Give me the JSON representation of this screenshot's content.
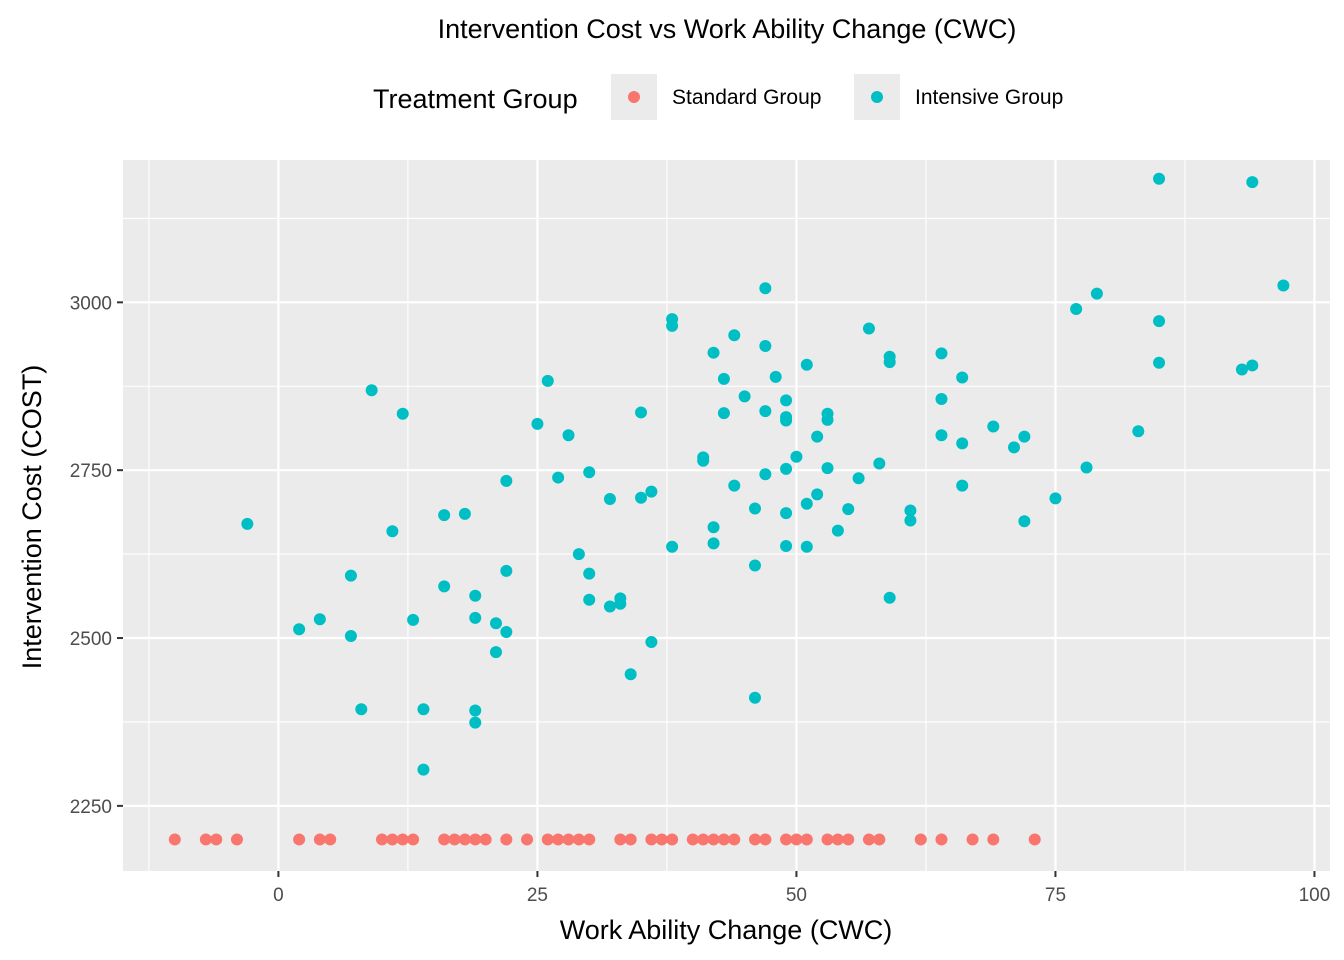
{
  "chart_data": {
    "type": "scatter",
    "title": "Intervention Cost vs Work Ability Change (CWC)",
    "xlabel": "Work Ability Change (CWC)",
    "ylabel": "Intervention Cost (COST)",
    "xlim": [
      -15,
      101.5
    ],
    "ylim": [
      2153,
      3212
    ],
    "xticks": [
      0,
      25,
      50,
      75,
      100
    ],
    "yticks": [
      2250,
      2500,
      2750,
      3000
    ],
    "grid": true,
    "legend": {
      "title": "Treatment Group",
      "position": "top",
      "entries": [
        "Standard Group",
        "Intensive Group"
      ]
    },
    "series": [
      {
        "name": "Standard Group",
        "color": "#F8766D",
        "points": [
          [
            -10,
            2200
          ],
          [
            -7,
            2200
          ],
          [
            -6,
            2200
          ],
          [
            -4,
            2200
          ],
          [
            2,
            2200
          ],
          [
            4,
            2200
          ],
          [
            5,
            2200
          ],
          [
            10,
            2200
          ],
          [
            11,
            2200
          ],
          [
            12,
            2200
          ],
          [
            13,
            2200
          ],
          [
            16,
            2200
          ],
          [
            17,
            2200
          ],
          [
            18,
            2200
          ],
          [
            19,
            2200
          ],
          [
            20,
            2200
          ],
          [
            22,
            2200
          ],
          [
            24,
            2200
          ],
          [
            26,
            2200
          ],
          [
            27,
            2200
          ],
          [
            28,
            2200
          ],
          [
            29,
            2200
          ],
          [
            30,
            2200
          ],
          [
            33,
            2200
          ],
          [
            34,
            2200
          ],
          [
            36,
            2200
          ],
          [
            37,
            2200
          ],
          [
            38,
            2200
          ],
          [
            40,
            2200
          ],
          [
            41,
            2200
          ],
          [
            42,
            2200
          ],
          [
            43,
            2200
          ],
          [
            44,
            2200
          ],
          [
            46,
            2200
          ],
          [
            47,
            2200
          ],
          [
            49,
            2200
          ],
          [
            50,
            2200
          ],
          [
            51,
            2200
          ],
          [
            53,
            2200
          ],
          [
            54,
            2200
          ],
          [
            55,
            2200
          ],
          [
            57,
            2200
          ],
          [
            58,
            2200
          ],
          [
            62,
            2200
          ],
          [
            64,
            2200
          ],
          [
            67,
            2200
          ],
          [
            69,
            2200
          ],
          [
            73,
            2200
          ]
        ]
      },
      {
        "name": "Intensive Group",
        "color": "#00BFC4",
        "points": [
          [
            -3,
            2670
          ],
          [
            2,
            2513
          ],
          [
            4,
            2528
          ],
          [
            7,
            2593
          ],
          [
            7,
            2503
          ],
          [
            8,
            2394
          ],
          [
            9,
            2869
          ],
          [
            11,
            2659
          ],
          [
            12,
            2834
          ],
          [
            13,
            2527
          ],
          [
            14,
            2394
          ],
          [
            14,
            2304
          ],
          [
            16,
            2683
          ],
          [
            16,
            2577
          ],
          [
            18,
            2685
          ],
          [
            19,
            2563
          ],
          [
            19,
            2530
          ],
          [
            19,
            2392
          ],
          [
            19,
            2374
          ],
          [
            21,
            2522
          ],
          [
            21,
            2479
          ],
          [
            22,
            2734
          ],
          [
            22,
            2600
          ],
          [
            22,
            2509
          ],
          [
            25,
            2819
          ],
          [
            26,
            2883
          ],
          [
            27,
            2739
          ],
          [
            28,
            2802
          ],
          [
            29,
            2625
          ],
          [
            30,
            2747
          ],
          [
            30,
            2596
          ],
          [
            30,
            2557
          ],
          [
            32,
            2707
          ],
          [
            32,
            2547
          ],
          [
            33,
            2559
          ],
          [
            33,
            2551
          ],
          [
            34,
            2446
          ],
          [
            35,
            2836
          ],
          [
            35,
            2709
          ],
          [
            36,
            2718
          ],
          [
            36,
            2494
          ],
          [
            38,
            2975
          ],
          [
            38,
            2965
          ],
          [
            38,
            2636
          ],
          [
            41,
            2769
          ],
          [
            41,
            2764
          ],
          [
            42,
            2925
          ],
          [
            42,
            2665
          ],
          [
            42,
            2641
          ],
          [
            43,
            2886
          ],
          [
            43,
            2835
          ],
          [
            44,
            2951
          ],
          [
            44,
            2727
          ],
          [
            45,
            2860
          ],
          [
            46,
            2693
          ],
          [
            46,
            2608
          ],
          [
            46,
            2411
          ],
          [
            47,
            3021
          ],
          [
            47,
            2935
          ],
          [
            47,
            2838
          ],
          [
            47,
            2744
          ],
          [
            48,
            2889
          ],
          [
            49,
            2854
          ],
          [
            49,
            2829
          ],
          [
            49,
            2824
          ],
          [
            49,
            2752
          ],
          [
            49,
            2686
          ],
          [
            49,
            2637
          ],
          [
            50,
            2770
          ],
          [
            51,
            2907
          ],
          [
            51,
            2700
          ],
          [
            51,
            2636
          ],
          [
            52,
            2800
          ],
          [
            52,
            2714
          ],
          [
            53,
            2834
          ],
          [
            53,
            2825
          ],
          [
            53,
            2753
          ],
          [
            54,
            2660
          ],
          [
            55,
            2692
          ],
          [
            56,
            2738
          ],
          [
            57,
            2961
          ],
          [
            58,
            2760
          ],
          [
            59,
            2919
          ],
          [
            59,
            2911
          ],
          [
            59,
            2560
          ],
          [
            61,
            2690
          ],
          [
            61,
            2675
          ],
          [
            64,
            2924
          ],
          [
            64,
            2856
          ],
          [
            64,
            2802
          ],
          [
            66,
            2888
          ],
          [
            66,
            2790
          ],
          [
            66,
            2727
          ],
          [
            69,
            2815
          ],
          [
            71,
            2784
          ],
          [
            72,
            2800
          ],
          [
            72,
            2674
          ],
          [
            75,
            2708
          ],
          [
            77,
            2990
          ],
          [
            78,
            2754
          ],
          [
            79,
            3013
          ],
          [
            83,
            2808
          ],
          [
            85,
            3184
          ],
          [
            85,
            2972
          ],
          [
            85,
            2910
          ],
          [
            93,
            2900
          ],
          [
            94,
            3179
          ],
          [
            94,
            2906
          ],
          [
            97,
            3025
          ]
        ]
      }
    ]
  }
}
